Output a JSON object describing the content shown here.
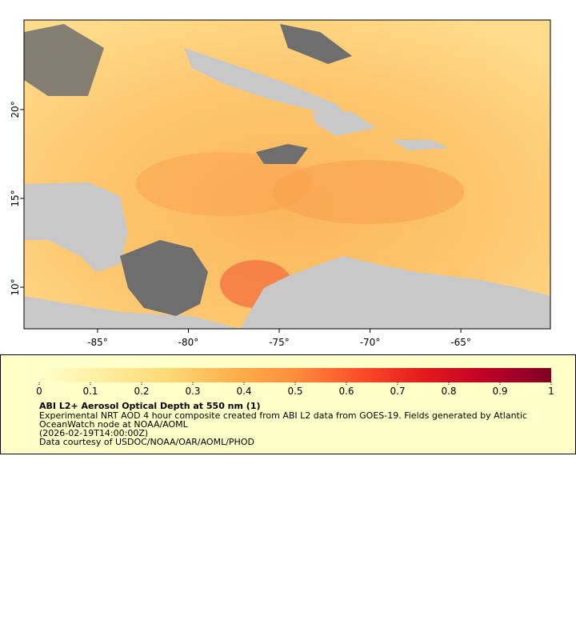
{
  "map": {
    "xlim": [
      -89.05,
      -60.07
    ],
    "ylim": [
      7.66,
      25.04
    ],
    "xticks": [
      {
        "value": -85,
        "label": "-85°"
      },
      {
        "value": -80,
        "label": "-80°"
      },
      {
        "value": -75,
        "label": "-75°"
      },
      {
        "value": -70,
        "label": "-70°"
      },
      {
        "value": -65,
        "label": "-65°"
      }
    ],
    "yticks": [
      {
        "value": 10,
        "label": "10°"
      },
      {
        "value": 15,
        "label": "15°"
      },
      {
        "value": 20,
        "label": "20°"
      }
    ]
  },
  "colorbar": {
    "lim": [
      0,
      1
    ],
    "ticks": [
      0,
      0.1,
      0.2,
      0.3,
      0.4,
      0.5,
      0.6,
      0.7,
      0.8,
      0.9,
      1
    ]
  },
  "legend": {
    "title": "ABI L2+ Aerosol Optical Depth at 550 nm (1)",
    "description": "Experimental NRT AOD 4 hour composite created from ABI L2 data from GOES-19. Fields generated by Atlantic OceanWatch node at NOAA/AOML",
    "time": "(2026-02-19T14:00:00Z)",
    "credit": "Data courtesy of USDOC/NOAA/OAR/AOML/PHOD"
  }
}
